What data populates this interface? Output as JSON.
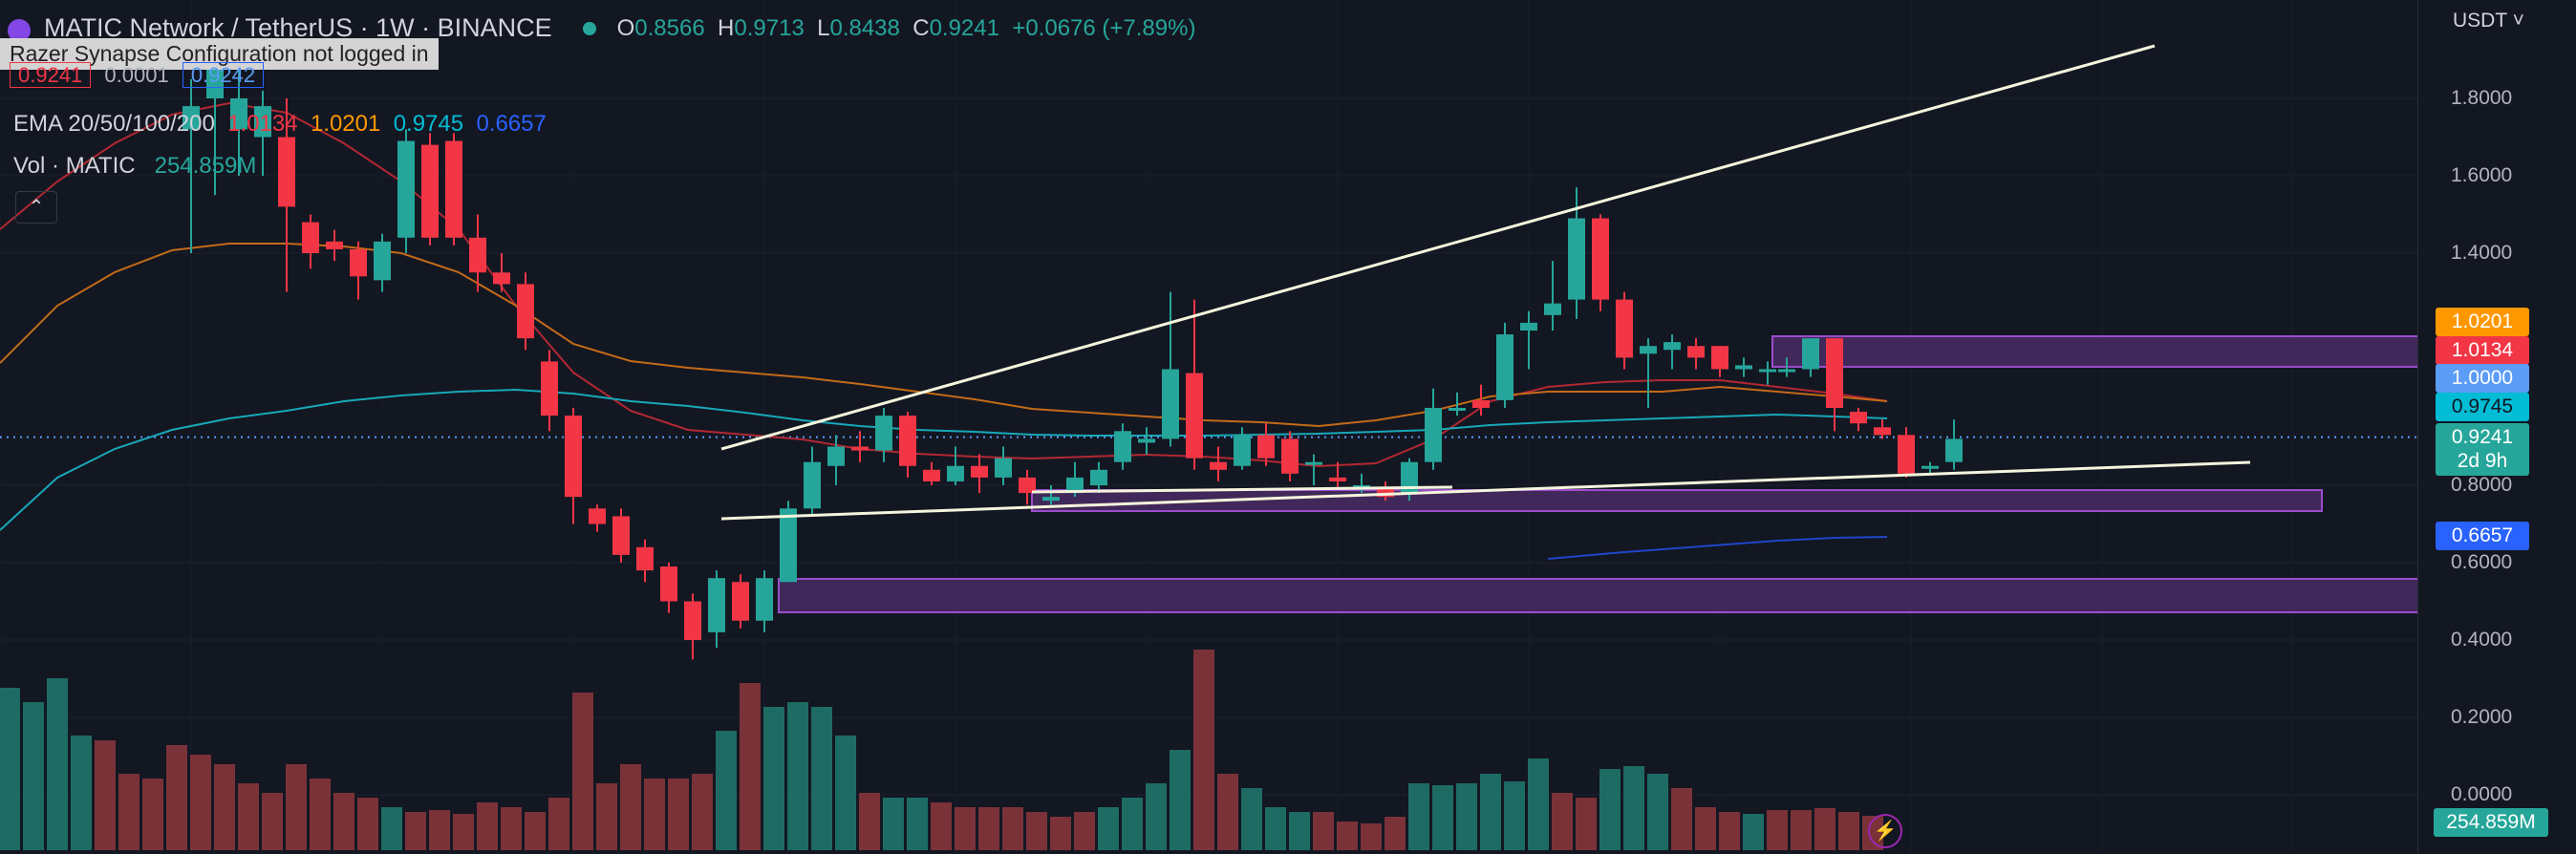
{
  "symbol": {
    "title": "MATIC Network / TetherUS · 1W · BINANCE",
    "ohlc": {
      "o_label": "O",
      "o": "0.8566",
      "h_label": "H",
      "h": "0.9713",
      "l_label": "L",
      "l": "0.8438",
      "c_label": "C",
      "c": "0.9241",
      "change": "+0.0676 (+7.89%)"
    }
  },
  "overlay_tooltip": "Razer Synapse Configuration not logged in",
  "partial_values": [
    "0.9241",
    "0.0001",
    "0.9242"
  ],
  "ema": {
    "label": "EMA 20/50/100/200",
    "values": [
      "1.0134",
      "1.0201",
      "0.9745",
      "0.6657"
    ],
    "colors": [
      "#f23645",
      "#ff9800",
      "#00bcd4",
      "#2962ff"
    ]
  },
  "volume": {
    "label": "Vol · MATIC",
    "value": "254.859M"
  },
  "collapse_icon": "chevron-up-icon",
  "price_axis": {
    "currency": "USDT",
    "ticks": [
      "1.8000",
      "1.6000",
      "1.4000",
      "0.8000",
      "0.6000",
      "0.4000",
      "0.2000",
      "0.0000"
    ],
    "labels": [
      {
        "text": "1.0201",
        "bg": "#ff9800",
        "fg": "#ffffff",
        "price": 1.0201
      },
      {
        "text": "1.0134",
        "bg": "#f23645",
        "fg": "#ffffff",
        "price": 1.0134
      },
      {
        "text": "1.0000",
        "bg": "#5b9cf6",
        "fg": "#ffffff",
        "price": 1.0
      },
      {
        "text": "0.9745",
        "bg": "#00bcd4",
        "fg": "#131722",
        "price": 0.9745
      },
      {
        "text": "0.9241",
        "bg": "#26a69a",
        "fg": "#ffffff",
        "price": 0.9241
      },
      {
        "text": "2d 9h",
        "bg": "#26a69a",
        "fg": "#ffffff",
        "price": 0.885
      },
      {
        "text": "0.6657",
        "bg": "#2962ff",
        "fg": "#ffffff",
        "price": 0.6657
      },
      {
        "text": "254.859M",
        "bg": "#26a69a",
        "fg": "#ffffff",
        "price": -0.09
      }
    ]
  },
  "colors": {
    "up": "#26a69a",
    "down": "#f23645",
    "bg": "#131722",
    "zone": "#7b3fa0"
  }
}
